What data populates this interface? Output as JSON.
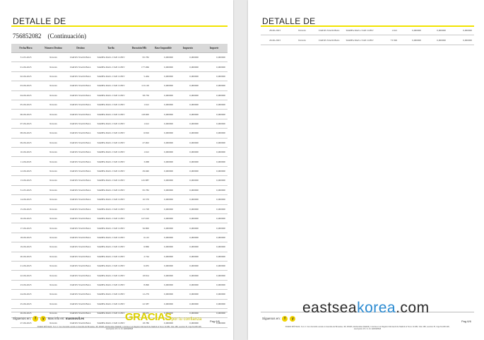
{
  "page1": {
    "title": "DETALLE DE",
    "contract": "756852082",
    "continuation": "(Continuación)",
    "columns": [
      "Fecha/Hora",
      "Número Destino",
      "Destino",
      "Tarifa",
      "Duración/Mb",
      "Base Imponible",
      "Impuesto",
      "Importe"
    ],
    "rows": [
      {
        "fecha": "31-05-2023",
        "numero": "Xxxxxx",
        "destino": "DATOS NACIONAL",
        "tarifa": "TARIFA MAS 2 X20 CONV",
        "duracion": "95.782",
        "base": "0,000000",
        "impuesto": "0,000000",
        "importe": "0,000000"
      },
      {
        "fecha": "01-06-2023",
        "numero": "Xxxxxx",
        "destino": "DATOS NACIONAL",
        "tarifa": "TARIFA MAS 2 X20 CONV",
        "duracion": "177.066",
        "base": "0,000000",
        "impuesto": "0,000000",
        "importe": "0,000000"
      },
      {
        "fecha": "02-06-2023",
        "numero": "Xxxxxx",
        "destino": "DATOS NACIONAL",
        "tarifa": "TARIFA MAS 2 X20 CONV",
        "duracion": "5.464",
        "base": "0,000000",
        "impuesto": "0,000000",
        "importe": "0,000000"
      },
      {
        "fecha": "03-06-2023",
        "numero": "Xxxxxx",
        "destino": "DATOS NACIONAL",
        "tarifa": "TARIFA MAS 2 X20 CONV",
        "duracion": "113.126",
        "base": "0,000000",
        "impuesto": "0,000000",
        "importe": "0,000000"
      },
      {
        "fecha": "04-06-2023",
        "numero": "Xxxxxx",
        "destino": "DATOS NACIONAL",
        "tarifa": "TARIFA MAS 2 X20 CONV",
        "duracion": "58.756",
        "base": "0,000000",
        "impuesto": "0,000000",
        "importe": "0,000000"
      },
      {
        "fecha": "05-06-2023",
        "numero": "Xxxxxx",
        "destino": "DATOS NACIONAL",
        "tarifa": "TARIFA MAS 2 X20 CONV",
        "duracion": "1.612",
        "base": "0,000000",
        "impuesto": "0,000000",
        "importe": "0,000000"
      },
      {
        "fecha": "06-06-2023",
        "numero": "Xxxxxx",
        "destino": "DATOS NACIONAL",
        "tarifa": "TARIFA MAS 2 X20 CONV",
        "duracion": "118.600",
        "base": "0,000000",
        "impuesto": "0,000000",
        "importe": "0,000000"
      },
      {
        "fecha": "07-06-2023",
        "numero": "Xxxxxx",
        "destino": "DATOS NACIONAL",
        "tarifa": "TARIFA MAS 2 X20 CONV",
        "duracion": "1.612",
        "base": "0,000000",
        "impuesto": "0,000000",
        "importe": "0,000000"
      },
      {
        "fecha": "08-06-2023",
        "numero": "Xxxxxx",
        "destino": "DATOS NACIONAL",
        "tarifa": "TARIFA MAS 2 X20 CONV",
        "duracion": "6.816",
        "base": "0,000000",
        "impuesto": "0,000000",
        "importe": "0,000000"
      },
      {
        "fecha": "09-06-2023",
        "numero": "Xxxxxx",
        "destino": "DATOS NACIONAL",
        "tarifa": "TARIFA MAS 2 X20 CONV",
        "duracion": "47.902",
        "base": "0,000000",
        "impuesto": "0,000000",
        "importe": "0,000000"
      },
      {
        "fecha": "10-06-2023",
        "numero": "Xxxxxx",
        "destino": "DATOS NACIONAL",
        "tarifa": "TARIFA MAS 2 X20 CONV",
        "duracion": "1.612",
        "base": "0,000000",
        "impuesto": "0,000000",
        "importe": "0,000000"
      },
      {
        "fecha": "11-06-2023",
        "numero": "Xxxxxx",
        "destino": "DATOS NACIONAL",
        "tarifa": "TARIFA MAS 2 X20 CONV",
        "duracion": "3.068",
        "base": "0,000000",
        "impuesto": "0,000000",
        "importe": "0,000000"
      },
      {
        "fecha": "12-06-2023",
        "numero": "Xxxxxx",
        "destino": "DATOS NACIONAL",
        "tarifa": "TARIFA MAS 2 X20 CONV",
        "duracion": "29.940",
        "base": "0,000000",
        "impuesto": "0,000000",
        "importe": "0,000000"
      },
      {
        "fecha": "13-06-2023",
        "numero": "Xxxxxx",
        "destino": "DATOS NACIONAL",
        "tarifa": "TARIFA MAS 2 X20 CONV",
        "duracion": "145.887",
        "base": "0,000000",
        "impuesto": "0,000000",
        "importe": "0,000000"
      },
      {
        "fecha": "31-05-2023",
        "numero": "Xxxxxx",
        "destino": "DATOS NACIONAL",
        "tarifa": "TARIFA MAS 2 X20 CONV",
        "duracion": "95.782",
        "base": "0,000000",
        "impuesto": "0,000000",
        "importe": "0,000000"
      },
      {
        "fecha": "14-06-2023",
        "numero": "Xxxxxx",
        "destino": "DATOS NACIONAL",
        "tarifa": "TARIFA MAS 2 X20 CONV",
        "duracion": "10.576",
        "base": "0,000000",
        "impuesto": "0,000000",
        "importe": "0,000000"
      },
      {
        "fecha": "15-06-2023",
        "numero": "Xxxxxx",
        "destino": "DATOS NACIONAL",
        "tarifa": "TARIFA MAS 2 X20 CONV",
        "duracion": "21.728",
        "base": "0,000000",
        "impuesto": "0,000000",
        "importe": "0,000000"
      },
      {
        "fecha": "16-06-2023",
        "numero": "Xxxxxx",
        "destino": "DATOS NACIONAL",
        "tarifa": "TARIFA MAS 2 X20 CONV",
        "duracion": "147.610",
        "base": "0,000000",
        "impuesto": "0,000000",
        "importe": "0,000000"
      },
      {
        "fecha": "17-06-2023",
        "numero": "Xxxxxx",
        "destino": "DATOS NACIONAL",
        "tarifa": "TARIFA MAS 2 X20 CONV",
        "duracion": "56.800",
        "base": "0,000000",
        "impuesto": "0,000000",
        "importe": "0,000000"
      },
      {
        "fecha": "18-06-2023",
        "numero": "Xxxxxx",
        "destino": "DATOS NACIONAL",
        "tarifa": "TARIFA MAS 2 X20 CONV",
        "duracion": "6.143",
        "base": "0,000000",
        "impuesto": "0,000000",
        "importe": "0,000000"
      },
      {
        "fecha": "19-06-2023",
        "numero": "Xxxxxx",
        "destino": "DATOS NACIONAL",
        "tarifa": "TARIFA MAS 2 X20 CONV",
        "duracion": "6.866",
        "base": "0,000000",
        "impuesto": "0,000000",
        "importe": "0,000000"
      },
      {
        "fecha": "20-06-2023",
        "numero": "Xxxxxx",
        "destino": "DATOS NACIONAL",
        "tarifa": "TARIFA MAS 2 X20 CONV",
        "duracion": "2.744",
        "base": "0,000000",
        "impuesto": "0,000000",
        "importe": "0,000000"
      },
      {
        "fecha": "21-06-2023",
        "numero": "Xxxxxx",
        "destino": "DATOS NACIONAL",
        "tarifa": "TARIFA MAS 2 X20 CONV",
        "duracion": "6.935",
        "base": "0,000000",
        "impuesto": "0,000000",
        "importe": "0,000000"
      },
      {
        "fecha": "22-06-2023",
        "numero": "Xxxxxx",
        "destino": "DATOS NACIONAL",
        "tarifa": "TARIFA MAS 2 X20 CONV",
        "duracion": "18.814",
        "base": "0,000000",
        "impuesto": "0,000000",
        "importe": "0,000000"
      },
      {
        "fecha": "23-06-2023",
        "numero": "Xxxxxx",
        "destino": "DATOS NACIONAL",
        "tarifa": "TARIFA MAS 2 X20 CONV",
        "duracion": "8.996",
        "base": "0,000000",
        "impuesto": "0,000000",
        "importe": "0,000000"
      },
      {
        "fecha": "24-06-2023",
        "numero": "Xxxxxx",
        "destino": "DATOS NACIONAL",
        "tarifa": "TARIFA MAS 2 X20 CONV",
        "duracion": "12.279",
        "base": "0,000000",
        "impuesto": "0,000000",
        "importe": "0,000000"
      },
      {
        "fecha": "25-06-2023",
        "numero": "Xxxxxx",
        "destino": "DATOS NACIONAL",
        "tarifa": "TARIFA MAS 2 X20 CONV",
        "duracion": "22.587",
        "base": "0,000000",
        "impuesto": "0,000000",
        "importe": "0,000000"
      },
      {
        "fecha": "26-06-2023",
        "numero": "Xxxxxx",
        "destino": "DATOS NACIONAL",
        "tarifa": "TARIFA MAS 2 X20 CONV",
        "duracion": "28.635",
        "base": "0,000000",
        "impuesto": "0,000000",
        "importe": "0,000000"
      },
      {
        "fecha": "27-06-2023",
        "numero": "Xxxxxx",
        "destino": "DATOS NACIONAL",
        "tarifa": "TARIFA MAS 2 X20 CONV",
        "duracion": "18.786",
        "base": "0,000000",
        "impuesto": "0,000000",
        "importe": "0,000000"
      }
    ],
    "page_number": "Pag 6/6"
  },
  "page2": {
    "title": "DETALLE DE",
    "rows": [
      {
        "fecha": "28-06-2023",
        "numero": "Xxxxxx",
        "destino": "DATOS NACIONAL",
        "tarifa": "TARIFA MAS 2 X20 CONV",
        "duracion": "1.612",
        "base": "0,000000",
        "impuesto": "0,000000",
        "importe": "0,000000"
      },
      {
        "fecha": "29-06-2023",
        "numero": "Xxxxxx",
        "destino": "DATOS NACIONAL",
        "tarifa": "TARIFA MAS 2 X20 CONV",
        "duracion": "73.599",
        "base": "0,000000",
        "impuesto": "0,000000",
        "importe": "0,000000"
      }
    ],
    "page_number": "Pag 6/6"
  },
  "footer": {
    "follow_text": "Síguenos en:",
    "social": [
      "f",
      "y"
    ],
    "info_text": "Mas info en:",
    "website": "masmovil.es",
    "gracias": "GRACIAS",
    "confianza": "por tu confianza",
    "legal_line1": "XFERA MÓVILES, S.A.U. Con domicilio social en Avenida de Bruselas, 38, 28108, Alcobendas (Madrid), Inscrita en el Registro Mercantil de Madrid al Tomo 14.682, folio 186, sección 8ª, hoja M-248.418,",
    "legal_line2": "inscripción 15.ª C.I.F. A82528548"
  },
  "watermark": {
    "part1": "eastsea",
    "part2": "korea",
    "part3": ".com"
  },
  "colors": {
    "accent_yellow": "#f2e300",
    "gracias": "#dcd000",
    "header_grey": "#d9d9d9",
    "watermark_blue": "#2a8ad1"
  }
}
